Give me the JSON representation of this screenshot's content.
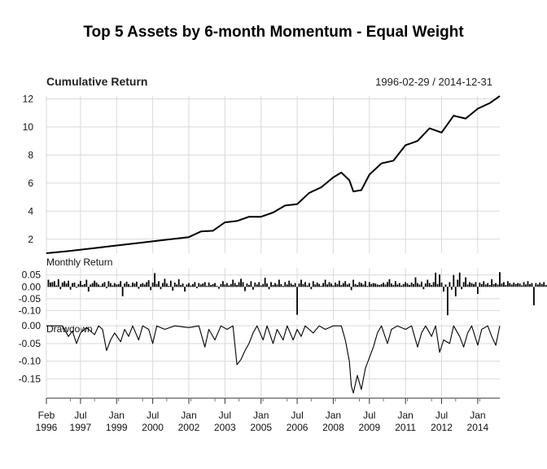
{
  "title": "Top 5 Assets by 6-month Momentum - Equal Weight",
  "panels": {
    "cumulative": {
      "label": "Cumulative Return",
      "date_range": "1996-02-29 / 2014-12-31"
    },
    "monthly": {
      "label": "Monthly Return"
    },
    "drawdown": {
      "label": "Drawdown"
    }
  },
  "chart_data": {
    "type": "line",
    "title": "Top 5 Assets by 6-month Momentum - Equal Weight",
    "date_range": [
      "1996-02-29",
      "2014-12-31"
    ],
    "x_tick_labels": [
      {
        "month": "Feb",
        "year": "1996"
      },
      {
        "month": "Jul",
        "year": "1997"
      },
      {
        "month": "Jan",
        "year": "1999"
      },
      {
        "month": "Jul",
        "year": "2000"
      },
      {
        "month": "Jan",
        "year": "2002"
      },
      {
        "month": "Jul",
        "year": "2003"
      },
      {
        "month": "Jan",
        "year": "2005"
      },
      {
        "month": "Jul",
        "year": "2006"
      },
      {
        "month": "Jan",
        "year": "2008"
      },
      {
        "month": "Jul",
        "year": "2009"
      },
      {
        "month": "Jan",
        "year": "2011"
      },
      {
        "month": "Jul",
        "year": "2012"
      },
      {
        "month": "Jan",
        "year": "2014"
      }
    ],
    "x_tick_dates": [
      "1996-02",
      "1997-07",
      "1999-01",
      "2000-07",
      "2002-01",
      "2003-07",
      "2005-01",
      "2006-07",
      "2008-01",
      "2009-07",
      "2011-01",
      "2012-07",
      "2014-01"
    ],
    "cumulative_return": {
      "ylim": [
        1,
        12.2
      ],
      "yticks": [
        2,
        4,
        6,
        8,
        10,
        12
      ],
      "points": [
        [
          "1996-02",
          1.0
        ],
        [
          "1997-01",
          1.15
        ],
        [
          "1998-01",
          1.35
        ],
        [
          "1999-01",
          1.55
        ],
        [
          "2000-01",
          1.75
        ],
        [
          "2001-01",
          1.95
        ],
        [
          "2002-01",
          2.15
        ],
        [
          "2002-07",
          2.55
        ],
        [
          "2003-01",
          2.6
        ],
        [
          "2003-07",
          3.2
        ],
        [
          "2004-01",
          3.3
        ],
        [
          "2004-07",
          3.6
        ],
        [
          "2005-01",
          3.6
        ],
        [
          "2005-07",
          3.9
        ],
        [
          "2006-01",
          4.4
        ],
        [
          "2006-07",
          4.5
        ],
        [
          "2007-01",
          5.3
        ],
        [
          "2007-07",
          5.7
        ],
        [
          "2008-01",
          6.4
        ],
        [
          "2008-05",
          6.75
        ],
        [
          "2008-09",
          6.2
        ],
        [
          "2008-11",
          5.4
        ],
        [
          "2009-03",
          5.5
        ],
        [
          "2009-07",
          6.6
        ],
        [
          "2010-01",
          7.4
        ],
        [
          "2010-07",
          7.6
        ],
        [
          "2011-01",
          8.7
        ],
        [
          "2011-07",
          9.0
        ],
        [
          "2012-01",
          9.9
        ],
        [
          "2012-07",
          9.6
        ],
        [
          "2013-01",
          10.8
        ],
        [
          "2013-07",
          10.6
        ],
        [
          "2014-01",
          11.3
        ],
        [
          "2014-07",
          11.7
        ],
        [
          "2014-12",
          12.2
        ]
      ]
    },
    "monthly_return": {
      "ylim": [
        -0.14,
        0.08
      ],
      "yticks": [
        0.05,
        0.0,
        -0.05,
        -0.1
      ],
      "ytick_labels": [
        "0.05",
        "0.00",
        "-0.05",
        "-0.10"
      ],
      "values": [
        0.03,
        0.018,
        0.02,
        0.024,
        0.006,
        0.032,
        -0.01,
        0.018,
        0.024,
        0.014,
        0.026,
        -0.012,
        0.016,
        0.018,
        -0.004,
        0.012,
        0.025,
        0.008,
        0.012,
        0.03,
        -0.02,
        0.01,
        0.016,
        0.026,
        0.018,
        0.01,
        0.004,
        0.014,
        0.02,
        -0.006,
        0.024,
        0.016,
        0.006,
        0.016,
        0.01,
        0.012,
        0.024,
        -0.04,
        0.014,
        0.022,
        0.012,
        0.004,
        0.018,
        0.014,
        0.022,
        -0.008,
        0.012,
        0.016,
        0.01,
        0.02,
        0.028,
        -0.014,
        0.018,
        0.058,
        0.012,
        0.024,
        -0.01,
        0.016,
        0.034,
        0.014,
        0.004,
        0.026,
        -0.016,
        0.018,
        0.01,
        0.032,
        0.008,
        0.014,
        -0.02,
        0.01,
        0.016,
        0.006,
        0.012,
        0.02,
        -0.006,
        0.016,
        0.01,
        0.014,
        0.02,
        0.004,
        0.018,
        0.008,
        0.012,
        0.016,
        0.004,
        -0.008,
        0.012,
        0.024,
        0.01,
        0.016,
        0.006,
        0.012,
        0.03,
        0.016,
        0.008,
        0.02,
        0.034,
        0.02,
        -0.018,
        0.014,
        0.008,
        0.024,
        -0.012,
        0.018,
        0.01,
        0.02,
        0.006,
        0.012,
        0.038,
        0.014,
        -0.01,
        0.02,
        0.008,
        0.016,
        0.01,
        0.03,
        0.012,
        0.004,
        0.02,
        0.01,
        0.026,
        0.014,
        0.008,
        0.016,
        -0.118,
        0.014,
        0.03,
        0.012,
        0.02,
        0.006,
        0.016,
        -0.01,
        0.024,
        0.01,
        0.018,
        0.012,
        0.004,
        0.016,
        0.03,
        0.01,
        0.02,
        0.014,
        0.006,
        0.018,
        0.012,
        0.026,
        0.008,
        0.016,
        0.024,
        0.01,
        0.014,
        -0.014,
        0.03,
        0.012,
        0.008,
        0.02,
        0.016,
        0.01,
        0.024,
        0.004,
        0.02,
        0.012,
        0.016,
        0.014,
        0.01,
        0.008,
        0.012,
        0.018,
        0.01,
        0.02,
        0.032,
        0.014,
        0.008,
        0.024,
        0.01,
        0.016,
        0.006,
        0.012,
        0.02,
        0.014,
        0.008,
        0.018,
        0.012,
        0.04,
        0.016,
        0.01,
        0.022,
        -0.01,
        0.014,
        0.03,
        0.016,
        0.008,
        0.02,
        0.06,
        0.012,
        0.052,
        0.018,
        -0.02,
        0.01,
        -0.12,
        0.02,
        -0.012,
        0.05,
        -0.04,
        0.03,
        0.06,
        -0.01,
        0.02,
        0.04,
        0.01,
        0.02,
        0.016,
        0.012,
        0.02,
        -0.03,
        0.018,
        0.012,
        0.024,
        0.01,
        0.016,
        0.008,
        0.032,
        0.012,
        0.016,
        0.01,
        0.062,
        0.014,
        0.02,
        0.008,
        0.024,
        0.016,
        0.01,
        0.018,
        0.012,
        0.016,
        0.014,
        0.006,
        0.02,
        0.01,
        0.024,
        0.012,
        0.016,
        -0.078,
        0.016,
        0.01,
        0.018,
        0.012,
        0.02,
        0.008,
        0.014,
        0.01,
        0.018,
        0.016,
        0.024,
        0.014,
        0.01,
        0.02,
        0.016,
        0.04,
        0.012,
        0.008,
        0.018,
        0.014,
        0.01,
        0.016,
        0.012,
        0.02,
        0.014,
        0.03,
        0.01,
        -0.016,
        0.012,
        0.008,
        0.02,
        0.014,
        0.024,
        0.01,
        0.012,
        0.02,
        0.014,
        0.03,
        0.006
      ]
    },
    "drawdown": {
      "ylim": [
        -0.2,
        0.005
      ],
      "yticks": [
        0.0,
        -0.05,
        -0.1,
        -0.15
      ],
      "ytick_labels": [
        "0.00",
        "-0.05",
        "-0.10",
        "-0.15"
      ],
      "points": [
        [
          "1996-02",
          0.0
        ],
        [
          "1996-10",
          0.0
        ],
        [
          "1997-01",
          -0.03
        ],
        [
          "1997-03",
          -0.015
        ],
        [
          "1997-05",
          -0.05
        ],
        [
          "1997-07",
          -0.02
        ],
        [
          "1997-10",
          -0.005
        ],
        [
          "1998-02",
          -0.025
        ],
        [
          "1998-04",
          0.0
        ],
        [
          "1998-06",
          -0.01
        ],
        [
          "1998-08",
          -0.07
        ],
        [
          "1998-10",
          -0.04
        ],
        [
          "1998-12",
          -0.02
        ],
        [
          "1999-03",
          -0.045
        ],
        [
          "1999-05",
          -0.01
        ],
        [
          "1999-07",
          -0.03
        ],
        [
          "1999-09",
          0.0
        ],
        [
          "1999-12",
          -0.04
        ],
        [
          "2000-02",
          0.0
        ],
        [
          "2000-05",
          -0.01
        ],
        [
          "2000-07",
          -0.05
        ],
        [
          "2000-09",
          0.0
        ],
        [
          "2001-01",
          -0.01
        ],
        [
          "2001-06",
          0.0
        ],
        [
          "2002-01",
          -0.005
        ],
        [
          "2002-06",
          0.0
        ],
        [
          "2002-09",
          -0.06
        ],
        [
          "2002-11",
          -0.01
        ],
        [
          "2003-02",
          -0.04
        ],
        [
          "2003-05",
          0.0
        ],
        [
          "2003-08",
          -0.01
        ],
        [
          "2003-11",
          0.0
        ],
        [
          "2004-01",
          -0.11
        ],
        [
          "2004-03",
          -0.095
        ],
        [
          "2004-05",
          -0.07
        ],
        [
          "2004-07",
          -0.05
        ],
        [
          "2004-09",
          -0.02
        ],
        [
          "2004-11",
          0.0
        ],
        [
          "2005-02",
          -0.04
        ],
        [
          "2005-04",
          0.0
        ],
        [
          "2005-07",
          -0.05
        ],
        [
          "2005-09",
          -0.01
        ],
        [
          "2005-12",
          -0.04
        ],
        [
          "2006-02",
          0.0
        ],
        [
          "2006-05",
          -0.04
        ],
        [
          "2006-07",
          -0.01
        ],
        [
          "2006-09",
          -0.03
        ],
        [
          "2006-11",
          0.0
        ],
        [
          "2007-03",
          -0.02
        ],
        [
          "2007-06",
          0.0
        ],
        [
          "2007-09",
          -0.01
        ],
        [
          "2008-01",
          0.0
        ],
        [
          "2008-05",
          0.0
        ],
        [
          "2008-07",
          -0.04
        ],
        [
          "2008-09",
          -0.1
        ],
        [
          "2008-10",
          -0.17
        ],
        [
          "2008-11",
          -0.19
        ],
        [
          "2009-01",
          -0.14
        ],
        [
          "2009-03",
          -0.18
        ],
        [
          "2009-05",
          -0.12
        ],
        [
          "2009-07",
          -0.09
        ],
        [
          "2009-09",
          -0.06
        ],
        [
          "2009-11",
          -0.02
        ],
        [
          "2010-01",
          0.0
        ],
        [
          "2010-04",
          -0.05
        ],
        [
          "2010-06",
          -0.01
        ],
        [
          "2010-09",
          0.0
        ],
        [
          "2011-01",
          -0.01
        ],
        [
          "2011-04",
          0.0
        ],
        [
          "2011-07",
          -0.06
        ],
        [
          "2011-09",
          -0.02
        ],
        [
          "2011-11",
          0.0
        ],
        [
          "2012-02",
          -0.03
        ],
        [
          "2012-04",
          0.0
        ],
        [
          "2012-06",
          -0.075
        ],
        [
          "2012-08",
          -0.04
        ],
        [
          "2012-11",
          -0.05
        ],
        [
          "2013-01",
          0.0
        ],
        [
          "2013-04",
          -0.03
        ],
        [
          "2013-06",
          -0.06
        ],
        [
          "2013-08",
          -0.02
        ],
        [
          "2013-10",
          0.0
        ],
        [
          "2014-01",
          -0.055
        ],
        [
          "2014-03",
          -0.01
        ],
        [
          "2014-06",
          0.0
        ],
        [
          "2014-08",
          -0.03
        ],
        [
          "2014-10",
          -0.055
        ],
        [
          "2014-12",
          0.0
        ]
      ]
    },
    "grid": true,
    "legend": "none"
  }
}
